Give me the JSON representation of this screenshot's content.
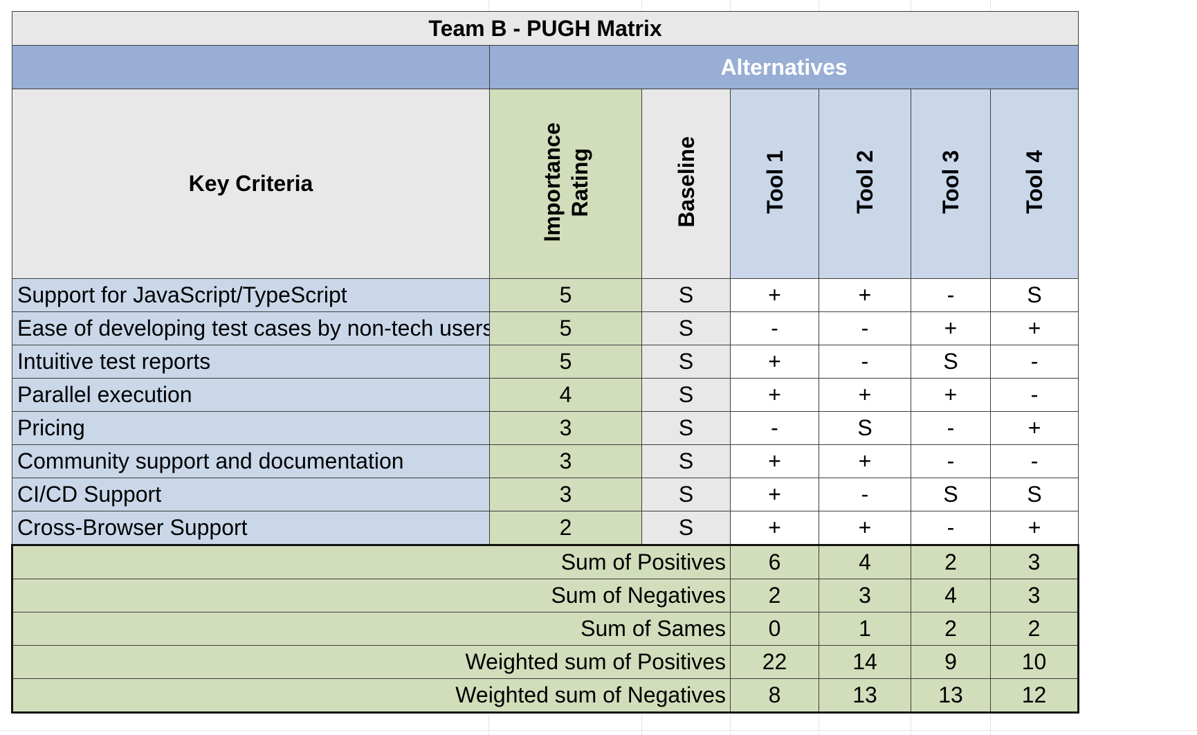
{
  "title": "Team B - PUGH Matrix",
  "alternatives_label": "Alternatives",
  "headers": {
    "key_criteria": "Key Criteria",
    "importance": [
      "Importance",
      "Rating"
    ],
    "baseline": "Baseline",
    "tools": [
      "Tool 1",
      "Tool 2",
      "Tool 3",
      "Tool 4"
    ]
  },
  "rows": [
    {
      "criteria": "Support for JavaScript/TypeScript",
      "importance": "5",
      "baseline": "S",
      "values": [
        "+",
        "+",
        "-",
        "S"
      ]
    },
    {
      "criteria": "Ease of developing test cases by non-tech users",
      "importance": "5",
      "baseline": "S",
      "values": [
        "-",
        "-",
        "+",
        "+"
      ]
    },
    {
      "criteria": "Intuitive test reports",
      "importance": "5",
      "baseline": "S",
      "values": [
        "+",
        "-",
        "S",
        "-"
      ]
    },
    {
      "criteria": "Parallel execution",
      "importance": "4",
      "baseline": "S",
      "values": [
        "+",
        "+",
        "+",
        "-"
      ]
    },
    {
      "criteria": "Pricing",
      "importance": "3",
      "baseline": "S",
      "values": [
        "-",
        "S",
        "-",
        "+"
      ]
    },
    {
      "criteria": "Community support and documentation",
      "importance": "3",
      "baseline": "S",
      "values": [
        "+",
        "+",
        "-",
        "-"
      ]
    },
    {
      "criteria": "CI/CD Support",
      "importance": "3",
      "baseline": "S",
      "values": [
        "+",
        "-",
        "S",
        "S"
      ]
    },
    {
      "criteria": "Cross-Browser Support",
      "importance": "2",
      "baseline": "S",
      "values": [
        "+",
        "+",
        "-",
        "+"
      ]
    }
  ],
  "sums": [
    {
      "label": "Sum of Positives",
      "values": [
        "6",
        "4",
        "2",
        "3"
      ]
    },
    {
      "label": "Sum of Negatives",
      "values": [
        "2",
        "3",
        "4",
        "3"
      ]
    },
    {
      "label": "Sum of Sames",
      "values": [
        "0",
        "1",
        "2",
        "2"
      ]
    },
    {
      "label": "Weighted sum of Positives",
      "values": [
        "22",
        "14",
        "9",
        "10"
      ]
    },
    {
      "label": "Weighted sum of Negatives",
      "values": [
        "8",
        "13",
        "13",
        "12"
      ]
    }
  ]
}
